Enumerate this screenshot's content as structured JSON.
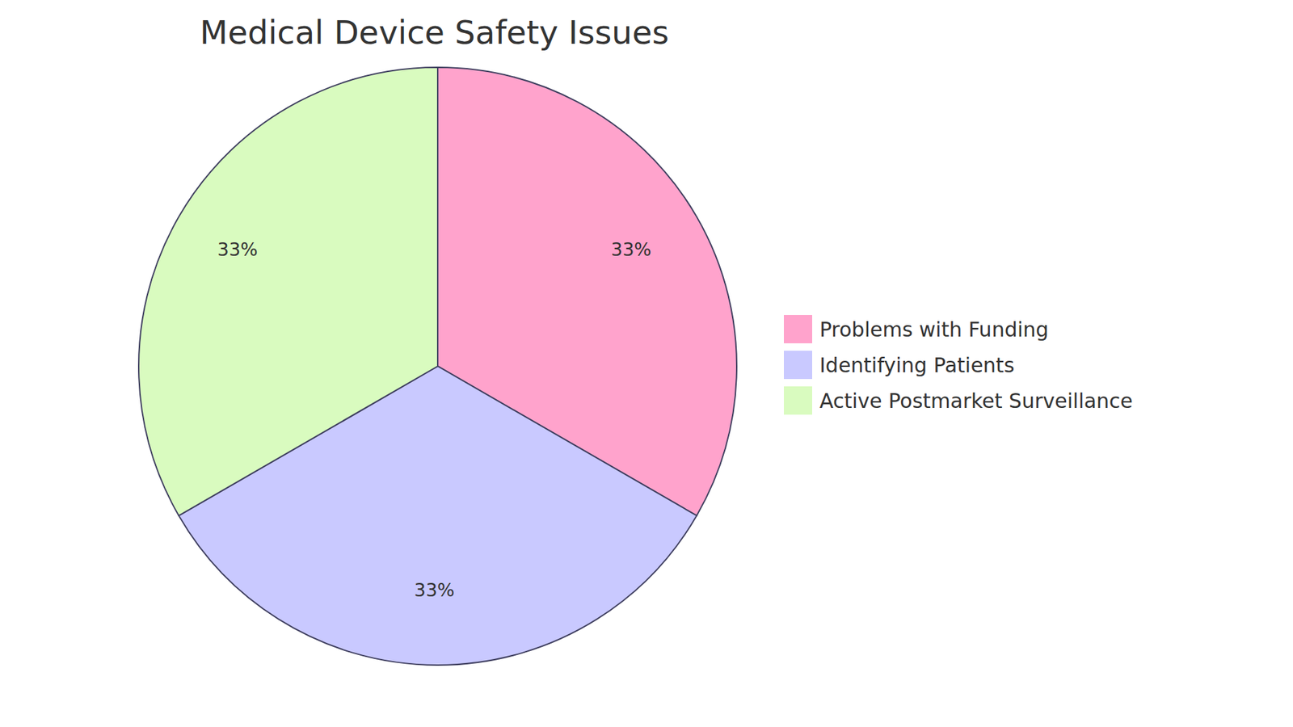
{
  "chart_data": {
    "type": "pie",
    "title": "Medical Device Safety Issues",
    "categories": [
      "Problems with Funding",
      "Identifying Patients",
      "Active Postmarket Surveillance"
    ],
    "values": [
      33,
      33,
      33
    ],
    "value_labels": [
      "33%",
      "33%",
      "33%"
    ],
    "colors": [
      "#ffa3cc",
      "#c9c9ff",
      "#d9fbbf"
    ],
    "data_labels": true,
    "legend": "right"
  }
}
